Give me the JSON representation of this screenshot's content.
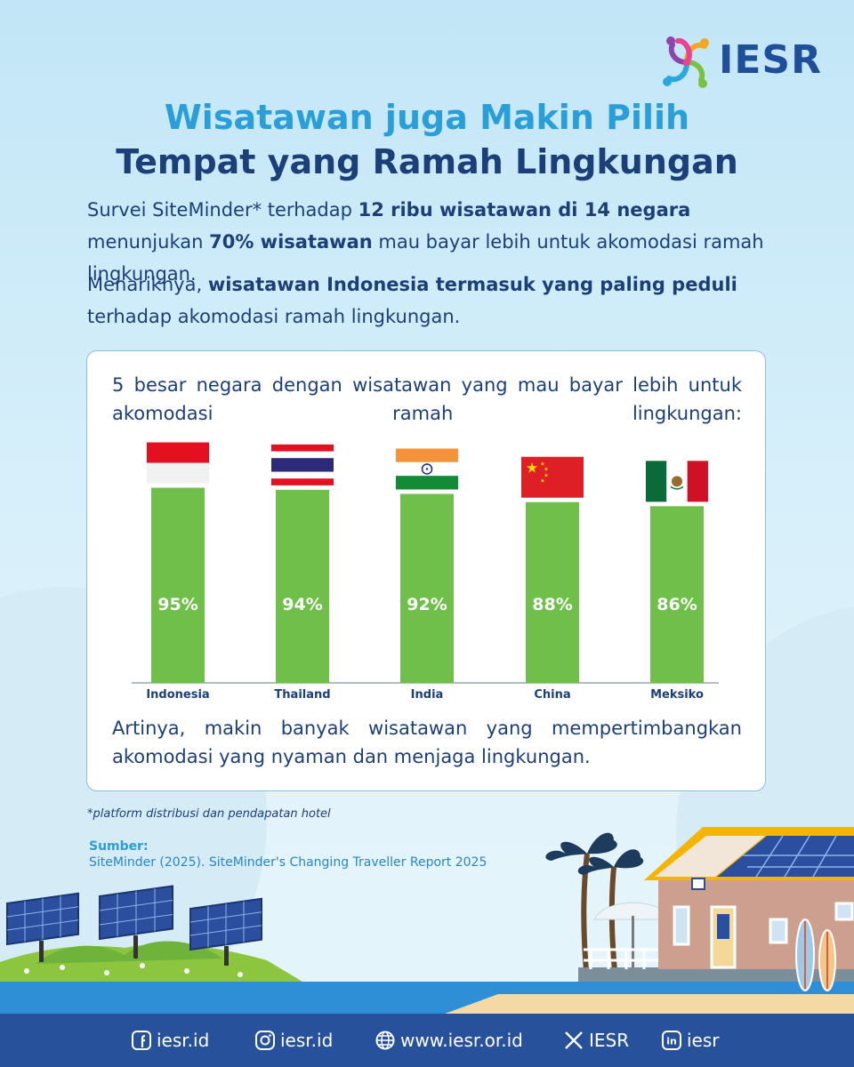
{
  "header": {
    "brand": "IESR",
    "title_line1": "Wisatawan juga Makin Pilih",
    "title_line2": "Tempat yang Ramah Lingkungan"
  },
  "intro": {
    "p1": [
      {
        "text": "Survei  SiteMinder* terhadap ",
        "bold": false
      },
      {
        "text": "12 ribu wisatawan di 14 negara",
        "bold": true
      },
      {
        "text": "  menunjukan ",
        "bold": false
      },
      {
        "text": "70% wisatawan",
        "bold": true
      },
      {
        "text": " mau bayar lebih untuk akomodasi ramah lingkungan.",
        "bold": false
      }
    ],
    "p2": [
      {
        "text": "Menariknya, ",
        "bold": false
      },
      {
        "text": "wisatawan Indonesia termasuk yang paling peduli",
        "bold": true
      },
      {
        "text": " terhadap akomodasi ramah lingkungan.",
        "bold": false
      }
    ]
  },
  "card": {
    "top_text": "5 besar negara dengan wisatawan yang mau bayar lebih untuk akomodasi ramah lingkungan:",
    "bottom_text": "Artinya, makin banyak wisatawan yang mempertimbangkan akomodasi yang nyaman dan menjaga lingkungan."
  },
  "chart_data": {
    "type": "bar",
    "categories": [
      "Indonesia",
      "Thailand",
      "India",
      "China",
      "Meksiko"
    ],
    "values": [
      95,
      94,
      92,
      88,
      86
    ],
    "value_labels": [
      "95%",
      "94%",
      "92%",
      "88%",
      "86%"
    ],
    "flags": [
      "indonesia-flag",
      "thailand-flag",
      "india-flag",
      "china-flag",
      "mexico-flag"
    ],
    "bar_color": "#6fbf4a",
    "title": "",
    "xlabel": "",
    "ylabel": "",
    "grid": false
  },
  "footnote": "*platform distribusi dan pendapatan hotel",
  "source": {
    "label": "Sumber:",
    "text": "SiteMinder (2025). SiteMinder's Changing Traveller Report 2025"
  },
  "footer": {
    "facebook": "iesr.id",
    "instagram": "iesr.id",
    "website": "www.iesr.or.id",
    "x": "IESR",
    "linkedin": "iesr"
  },
  "colors": {
    "title_light": "#2a9ed8",
    "title_dark": "#1c3f7a",
    "footer_bg": "#27519b",
    "bar": "#6fbf4a"
  }
}
